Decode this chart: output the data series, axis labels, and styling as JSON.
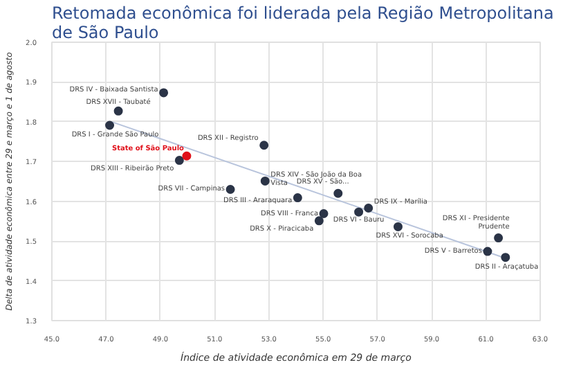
{
  "chart_data": {
    "type": "scatter",
    "title": "Retomada econômica foi liderada pela Região Metropolitana de São Paulo",
    "xlabel": "Índice de atividade econômica em 29 de março",
    "ylabel": "Delta de atividade econômica entre 29 e março e 1 de agosto",
    "xlim": [
      45,
      63
    ],
    "xticks": [
      {
        "value": 45,
        "label": "45.0"
      },
      {
        "value": 47,
        "label": "47.0"
      },
      {
        "value": 49,
        "label": "49.0"
      },
      {
        "value": 51,
        "label": "51.0"
      },
      {
        "value": 53,
        "label": "53.0"
      },
      {
        "value": 55,
        "label": "55.0"
      },
      {
        "value": 57,
        "label": "57.0"
      },
      {
        "value": 59,
        "label": "59.0"
      },
      {
        "value": 61,
        "label": "61.0"
      },
      {
        "value": 63,
        "label": "63.0"
      }
    ],
    "ylim": [
      1.3,
      2.0
    ],
    "yticks": [
      {
        "value": 1.3,
        "label": "1.3"
      },
      {
        "value": 1.4,
        "label": "1.4"
      },
      {
        "value": 1.5,
        "label": "1.5"
      },
      {
        "value": 1.6,
        "label": "1.6"
      },
      {
        "value": 1.7,
        "label": "1.7"
      },
      {
        "value": 1.8,
        "label": "1.8"
      },
      {
        "value": 1.9,
        "label": "1.9"
      },
      {
        "value": 2.0,
        "label": "2.0"
      }
    ],
    "grid": true,
    "marker": "circle",
    "series": [
      {
        "type": "line",
        "marker": "none",
        "color": "#b8c4dc",
        "x": [
          47.2,
          61.8
        ],
        "values": [
          1.8,
          1.455
        ]
      },
      {
        "color": "#2b3447",
        "x": [
          49.12,
          47.45,
          47.13,
          52.82,
          49.7,
          52.86,
          51.58,
          54.06,
          55.55,
          55.02,
          54.85,
          56.31,
          56.67,
          57.76,
          61.46,
          61.06,
          61.72
        ],
        "values": [
          1.873,
          1.827,
          1.791,
          1.741,
          1.703,
          1.651,
          1.63,
          1.609,
          1.62,
          1.569,
          1.551,
          1.573,
          1.583,
          1.536,
          1.508,
          1.474,
          1.459
        ],
        "value_labels": [
          "DRS IV - Baixada Santista",
          "DRS XVII - Taubaté",
          "DRS I - Grande São Paulo",
          "DRS XII - Registro",
          "DRS XIII - Ribeirão Preto",
          "DRS XIV - São João da Boa Vista",
          "DRS VII - Campinas",
          "DRS III - Araraquara",
          "DRS XV - São...",
          "DRS VIII - Franca",
          "DRS X - Piracicaba",
          "DRS VI - Bauru",
          "DRS IX - Marília",
          "DRS XVI - Sorocaba",
          "DRS XI - Presidente Prudente",
          "DRS V - Barretos",
          "DRS II - Araçatuba"
        ]
      },
      {
        "color": "#e0101a",
        "x": [
          49.97
        ],
        "values": [
          1.714
        ],
        "value_labels": [
          "State of São Paulo"
        ]
      }
    ]
  }
}
